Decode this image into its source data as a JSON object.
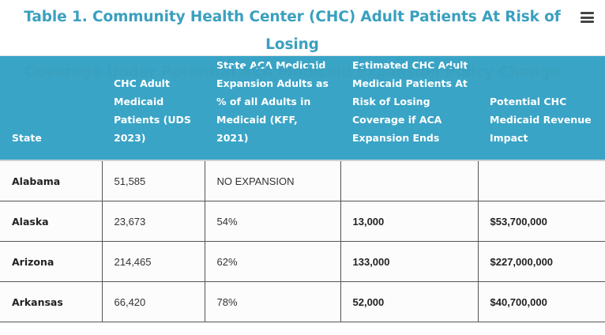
{
  "title_line1": "Table 1. Community Health Center (CHC) Adult Patients At Risk of Losing",
  "title_line2": "Coverage Under Potential ACA Medicaid Expansion Policy Change",
  "menu_icon": "hamburger-menu-icon",
  "colors": {
    "title": "#3aa0bf",
    "header_bg": "#39a4c6",
    "header_text": "#ffffff"
  },
  "columns": [
    "State",
    "CHC Adult Medicaid Patients (UDS 2023)",
    "State ACA Medicaid Expansion Adults as % of all Adults in Medicaid (KFF, 2021)",
    "Estimated CHC Adult Medicaid Patients At Risk of Losing Coverage if ACA Expansion Ends",
    "Potential CHC Medicaid Revenue Impact"
  ],
  "rows": [
    [
      "Alabama",
      "51,585",
      "NO EXPANSION",
      "",
      ""
    ],
    [
      "Alaska",
      "23,673",
      "54%",
      "13,000",
      "$53,700,000"
    ],
    [
      "Arizona",
      "214,465",
      "62%",
      "133,000",
      "$227,000,000"
    ],
    [
      "Arkansas",
      "66,420",
      "78%",
      "52,000",
      "$40,700,000"
    ]
  ]
}
